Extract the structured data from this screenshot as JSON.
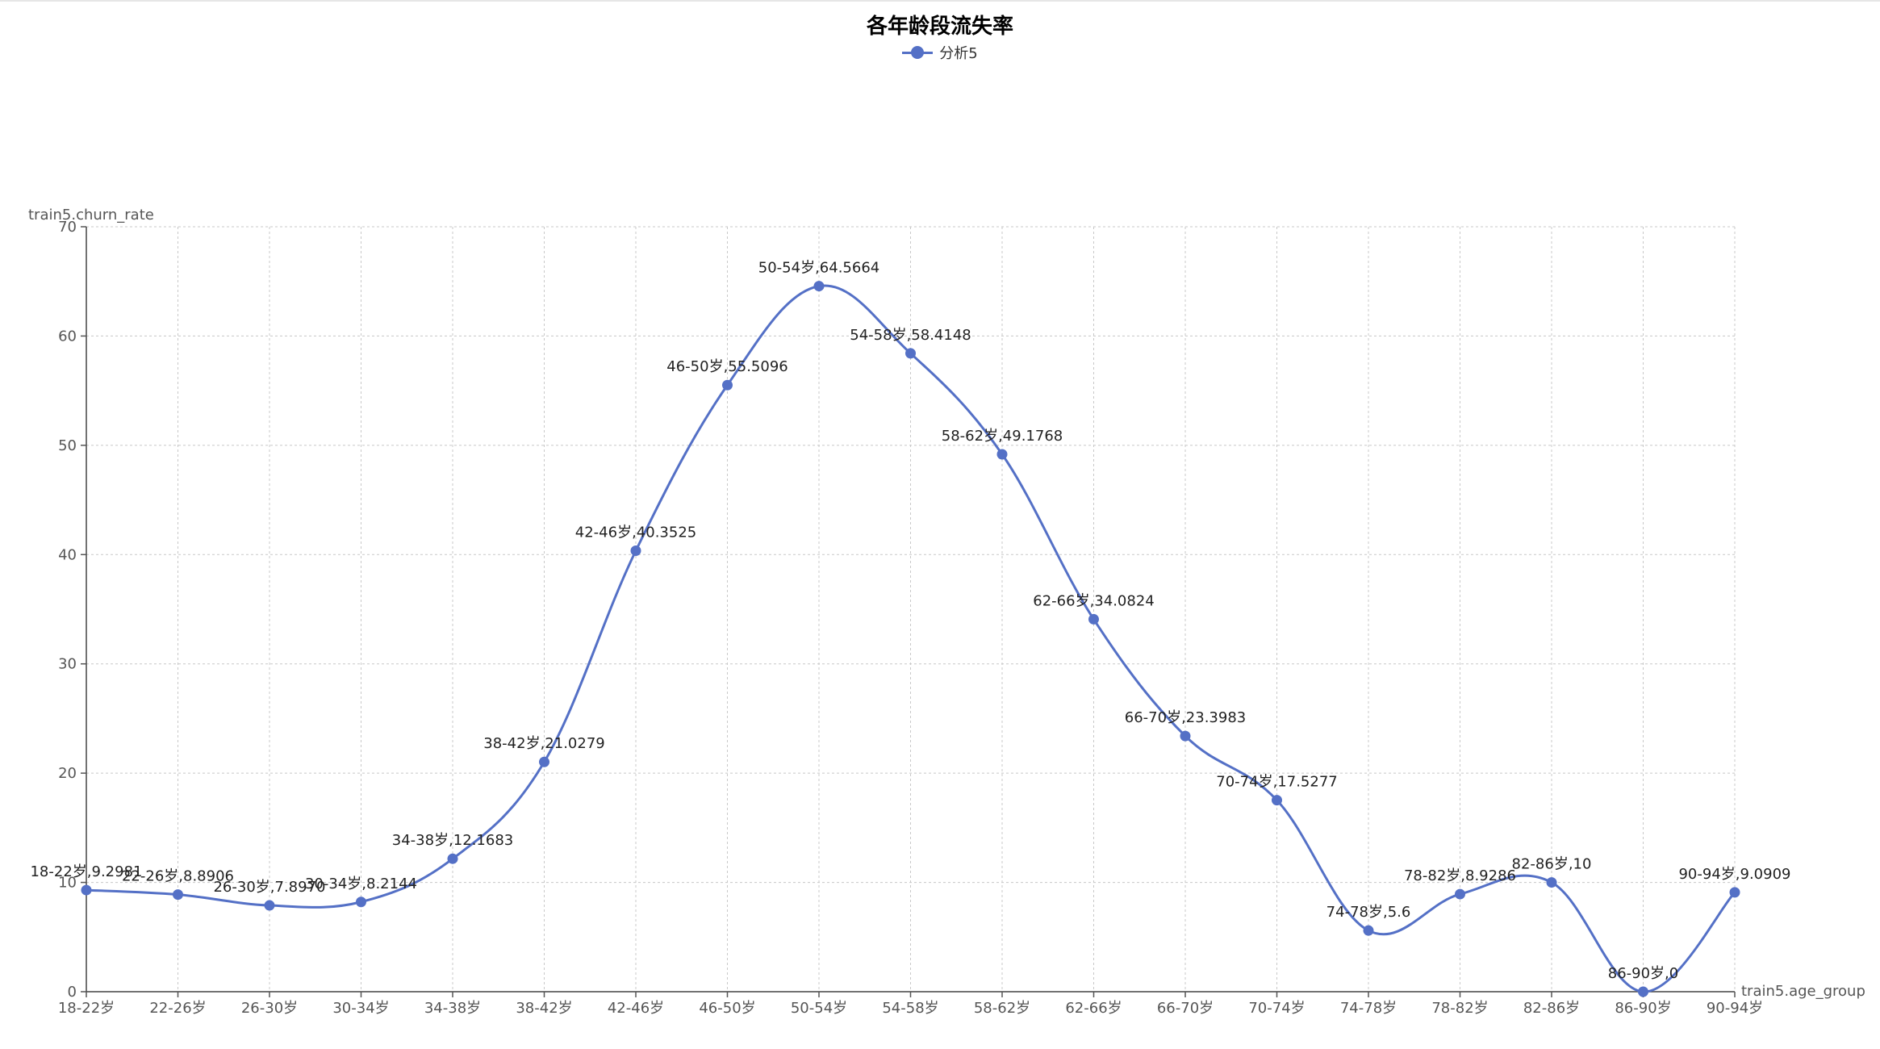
{
  "chart_data": {
    "type": "line",
    "title": "各年龄段流失率",
    "xlabel": "train5.age_group",
    "ylabel": "train5.churn_rate",
    "ylim": [
      0,
      70
    ],
    "yticks": [
      0,
      10,
      20,
      30,
      40,
      50,
      60,
      70
    ],
    "grid": true,
    "legend_position": "top-center",
    "categories": [
      "18-22岁",
      "22-26岁",
      "26-30岁",
      "30-34岁",
      "34-38岁",
      "38-42岁",
      "42-46岁",
      "46-50岁",
      "50-54岁",
      "54-58岁",
      "58-62岁",
      "62-66岁",
      "66-70岁",
      "70-74岁",
      "74-78岁",
      "78-82岁",
      "82-86岁",
      "86-90岁",
      "90-94岁"
    ],
    "series": [
      {
        "name": "分析5",
        "color": "#5470c6",
        "smooth": true,
        "values": [
          9.2981,
          8.8906,
          7.897,
          8.2144,
          12.1683,
          21.0279,
          40.3525,
          55.5096,
          64.5664,
          58.4148,
          49.1768,
          34.0824,
          23.3983,
          17.5277,
          5.6,
          8.9286,
          10,
          0,
          9.0909
        ],
        "labels": [
          "18-22岁,9.2981",
          "22-26岁,8.8906",
          "26-30岁,7.8970",
          "30-34岁,8.2144",
          "34-38岁,12.1683",
          "38-42岁,21.0279",
          "42-46岁,40.3525",
          "46-50岁,55.5096",
          "50-54岁,64.5664",
          "54-58岁,58.4148",
          "58-62岁,49.1768",
          "62-66岁,34.0824",
          "66-70岁,23.3983",
          "70-74岁,17.5277",
          "74-78岁,5.6",
          "78-82岁,8.9286",
          "82-86岁,10",
          "86-90岁,0",
          "90-94岁,9.0909"
        ]
      }
    ]
  }
}
